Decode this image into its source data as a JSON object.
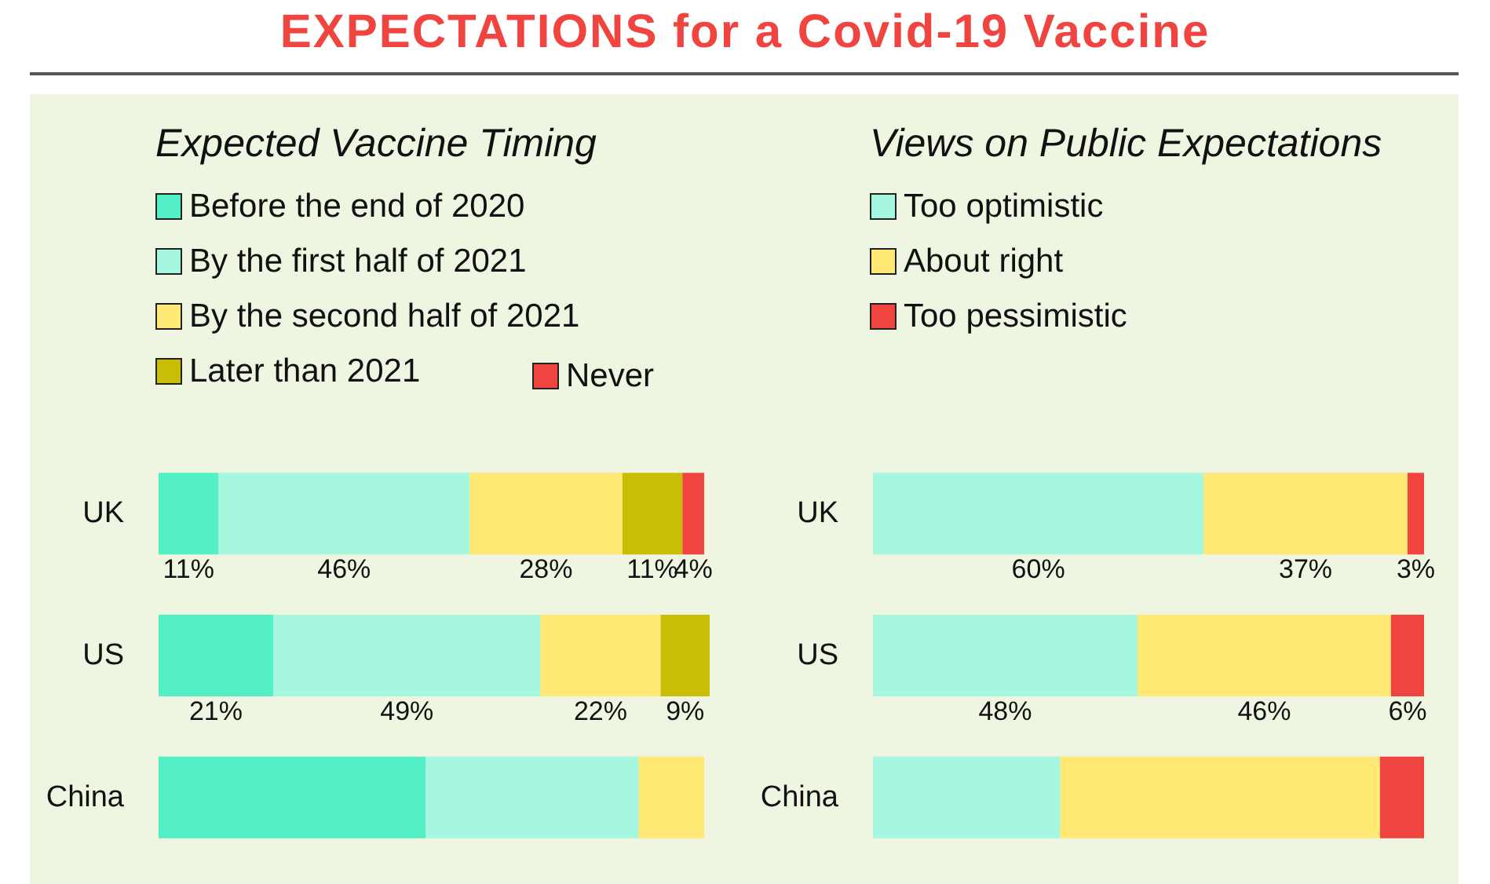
{
  "chart_data": [
    {
      "type": "bar",
      "title": "EXPECTATIONS for a Covid-19 Vaccine",
      "legend_title": "Expected Vaccine Timing",
      "orientation": "horizontal",
      "stacked": true,
      "legend": "top",
      "tick_labels": "y",
      "categories": [
        "UK",
        "US",
        "China"
      ],
      "series": [
        {
          "name": "Before the end of 2020",
          "color": "#52f0c4",
          "values": [
            11,
            21,
            49
          ],
          "value_labels": [
            "11%",
            "21%",
            null
          ]
        },
        {
          "name": "By the first half of 2021",
          "color": "#a6f7df",
          "values": [
            46,
            49,
            39
          ],
          "value_labels": [
            "46%",
            "49%",
            null
          ]
        },
        {
          "name": "By the second half of 2021",
          "color": "#ffe874",
          "values": [
            28,
            22,
            12
          ],
          "value_labels": [
            "28%",
            "22%",
            null
          ]
        },
        {
          "name": "Later than 2021",
          "color": "#c9be05",
          "values": [
            11,
            9,
            0
          ],
          "value_labels": [
            "11%",
            "9%",
            null
          ]
        },
        {
          "name": "Never",
          "color": "#f04440",
          "values": [
            4,
            0,
            0
          ],
          "value_labels": [
            "4%",
            null,
            null
          ]
        }
      ]
    },
    {
      "type": "bar",
      "legend_title": "Views on Public Expectations",
      "orientation": "horizontal",
      "stacked": true,
      "legend": "top",
      "tick_labels": "y",
      "categories": [
        "UK",
        "US",
        "China"
      ],
      "series": [
        {
          "name": "Too optimistic",
          "color": "#a6f7df",
          "values": [
            60,
            48,
            34
          ],
          "value_labels": [
            "60%",
            "48%",
            null
          ]
        },
        {
          "name": "About right",
          "color": "#ffe874",
          "values": [
            37,
            46,
            58
          ],
          "value_labels": [
            "37%",
            "46%",
            null
          ]
        },
        {
          "name": "Too pessimistic",
          "color": "#f04440",
          "values": [
            3,
            6,
            8
          ],
          "value_labels": [
            "3%",
            "6%",
            null
          ]
        }
      ]
    }
  ]
}
